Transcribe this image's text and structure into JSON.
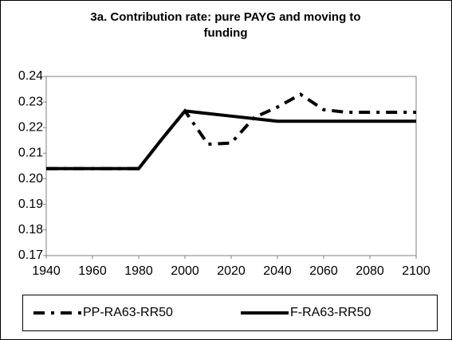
{
  "chart_data": {
    "type": "line",
    "title": "3a. Contribution rate: pure PAYG and moving to funding",
    "x": [
      1940,
      1950,
      1960,
      1970,
      1980,
      1990,
      2000,
      2010,
      2020,
      2030,
      2040,
      2050,
      2060,
      2070,
      2080,
      2090,
      2100
    ],
    "series": [
      {
        "name": "PP-RA63-RR50",
        "color": "#000000",
        "style": "dashed",
        "values": [
          0.204,
          0.204,
          0.204,
          0.204,
          0.204,
          0.2155,
          0.2265,
          0.2135,
          0.214,
          0.224,
          0.228,
          0.233,
          0.227,
          0.226,
          0.226,
          0.226,
          0.226
        ]
      },
      {
        "name": "F-RA63-RR50",
        "color": "#000000",
        "style": "solid",
        "values": [
          0.204,
          0.204,
          0.204,
          0.204,
          0.204,
          0.2155,
          0.2265,
          0.2255,
          0.2245,
          0.2235,
          0.2225,
          0.2225,
          0.2225,
          0.2225,
          0.2225,
          0.2225,
          0.2225
        ]
      }
    ],
    "xlim": [
      1940,
      2100
    ],
    "xticks": [
      1940,
      1960,
      1980,
      2000,
      2020,
      2040,
      2060,
      2080,
      2100
    ],
    "ylim": [
      0.17,
      0.24
    ],
    "yticks": [
      0.17,
      0.18,
      0.19,
      {
        "value": 0.2,
        "label": "0.20"
      },
      0.21,
      0.22,
      0.23,
      0.24
    ],
    "grid": false,
    "legend": "bottom"
  }
}
